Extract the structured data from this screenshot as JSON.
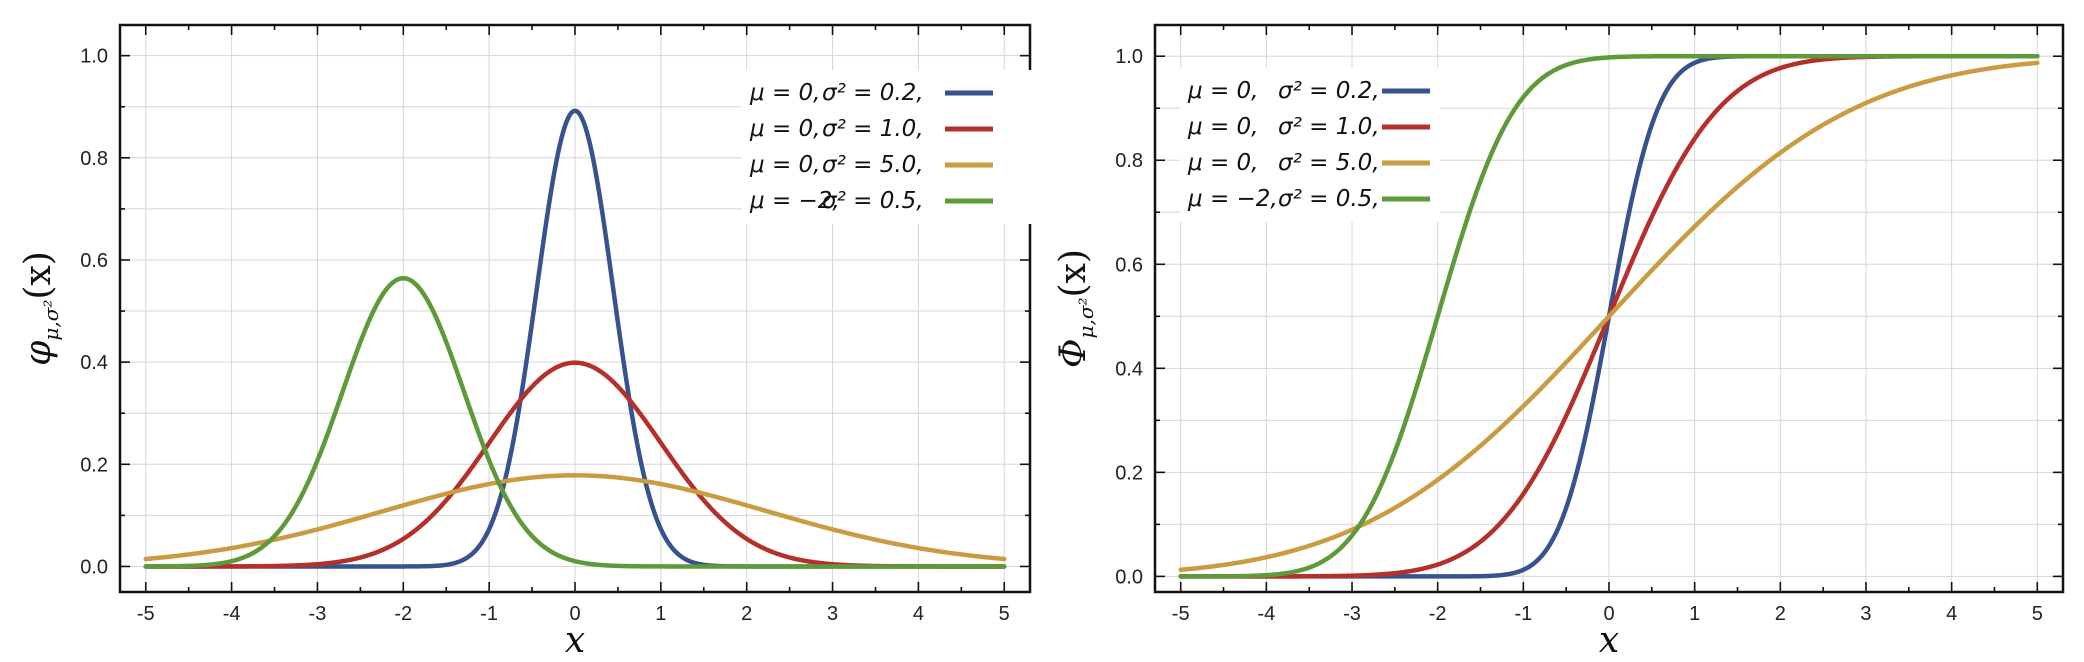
{
  "colors": {
    "blue": "#37538f",
    "red": "#b5302b",
    "gold": "#c99c42",
    "green": "#5f9a3a"
  },
  "chart_data": [
    {
      "type": "line",
      "function": "pdf",
      "title": "",
      "xlabel": "x",
      "ylabel": {
        "main": "φ",
        "sub": "μ,σ²",
        "arg": "(x)"
      },
      "xlim": [
        -5.3,
        5.3
      ],
      "ylim": [
        -0.05,
        1.06
      ],
      "xticks": [
        "-5",
        "-4",
        "-3",
        "-2",
        "-1",
        "0",
        "1",
        "2",
        "3",
        "4",
        "5"
      ],
      "yticks": [
        "0.0",
        "0.2",
        "0.4",
        "0.6",
        "0.8",
        "1.0"
      ],
      "grid": true,
      "legend_position": "top-right",
      "series": [
        {
          "mu_label": "μ = 0,",
          "var_label": "σ² = 0.2,",
          "mu": 0,
          "variance": 0.2,
          "color": "#37538f",
          "peak": 0.892
        },
        {
          "mu_label": "μ = 0,",
          "var_label": "σ² = 1.0,",
          "mu": 0,
          "variance": 1.0,
          "color": "#b5302b",
          "peak": 0.399
        },
        {
          "mu_label": "μ = 0,",
          "var_label": "σ² = 5.0,",
          "mu": 0,
          "variance": 5.0,
          "color": "#c99c42",
          "peak": 0.178
        },
        {
          "mu_label": "μ = −2,",
          "var_label": "σ² = 0.5,",
          "mu": -2,
          "variance": 0.5,
          "color": "#5f9a3a",
          "peak": 0.564
        }
      ]
    },
    {
      "type": "line",
      "function": "cdf",
      "title": "",
      "xlabel": "x",
      "ylabel": {
        "main": "Φ",
        "sub": "μ,σ²",
        "arg": "(x)"
      },
      "xlim": [
        -5.3,
        5.3
      ],
      "ylim": [
        -0.03,
        1.06
      ],
      "xticks": [
        "-5",
        "-4",
        "-3",
        "-2",
        "-1",
        "0",
        "1",
        "2",
        "3",
        "4",
        "5"
      ],
      "yticks": [
        "0.0",
        "0.2",
        "0.4",
        "0.6",
        "0.8",
        "1.0"
      ],
      "grid": true,
      "legend_position": "top-left",
      "series": [
        {
          "mu_label": "μ = 0,",
          "var_label": "σ² = 0.2,",
          "mu": 0,
          "variance": 0.2,
          "color": "#37538f"
        },
        {
          "mu_label": "μ = 0,",
          "var_label": "σ² = 1.0,",
          "mu": 0,
          "variance": 1.0,
          "color": "#b5302b"
        },
        {
          "mu_label": "μ = 0,",
          "var_label": "σ² = 5.0,",
          "mu": 0,
          "variance": 5.0,
          "color": "#c99c42"
        },
        {
          "mu_label": "μ = −2,",
          "var_label": "σ² = 0.5,",
          "mu": -2,
          "variance": 0.5,
          "color": "#5f9a3a"
        }
      ]
    }
  ]
}
